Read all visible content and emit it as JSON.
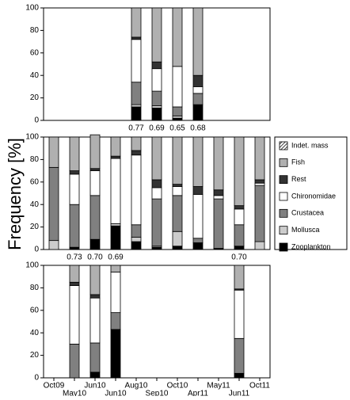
{
  "chart_data": [
    {
      "type": "stacked-bar",
      "ylim": [
        0,
        100
      ],
      "yticks": [
        0,
        20,
        40,
        60,
        80,
        100
      ],
      "notes": [
        null,
        null,
        null,
        null,
        "0.77",
        "0.69",
        "0.65",
        "0.68",
        null,
        null,
        null
      ],
      "series": [
        {
          "values": [
            null,
            null,
            null,
            null,
            0,
            0,
            0,
            0,
            null,
            null,
            null
          ]
        },
        {
          "values": [
            null,
            null,
            null,
            null,
            26,
            48,
            52,
            60,
            null,
            null,
            null
          ]
        },
        {
          "values": [
            null,
            null,
            null,
            null,
            2,
            6,
            0,
            10,
            null,
            null,
            null
          ]
        },
        {
          "values": [
            null,
            null,
            null,
            null,
            38,
            20,
            36,
            6,
            null,
            null,
            null
          ]
        },
        {
          "values": [
            null,
            null,
            null,
            null,
            20,
            13,
            8,
            10,
            null,
            null,
            null
          ]
        },
        {
          "values": [
            null,
            null,
            null,
            null,
            2,
            2,
            2,
            0,
            null,
            null,
            null
          ]
        },
        {
          "values": [
            null,
            null,
            null,
            null,
            12,
            11,
            2,
            14,
            null,
            null,
            null
          ]
        }
      ]
    },
    {
      "type": "stacked-bar",
      "ylim": [
        0,
        100
      ],
      "yticks": [
        0,
        20,
        40,
        60,
        80,
        100
      ],
      "ylabel": "Frequency [%]",
      "notes": [
        null,
        "0.73",
        "0.70",
        "0.69",
        null,
        null,
        null,
        null,
        null,
        "0.70",
        null
      ],
      "series": [
        {
          "name": "Indet. mass",
          "color": "#ffffff",
          "pattern": "hatch",
          "values": [
            0,
            0,
            0,
            0,
            0,
            0,
            0,
            0,
            0,
            0,
            0
          ]
        },
        {
          "name": "Fish",
          "color": "#b0b0b0",
          "values": [
            27,
            30,
            30,
            17,
            12,
            38,
            42,
            44,
            47,
            61,
            38
          ]
        },
        {
          "name": "Rest",
          "color": "#333333",
          "values": [
            0,
            3,
            2,
            2,
            4,
            7,
            2,
            7,
            5,
            3,
            3
          ]
        },
        {
          "name": "Chironomidae",
          "color": "#ffffff",
          "values": [
            0,
            27,
            22,
            58,
            62,
            10,
            8,
            39,
            3,
            14,
            2
          ]
        },
        {
          "name": "Crustacea",
          "color": "#808080",
          "values": [
            65,
            38,
            39,
            0,
            11,
            42,
            32,
            4,
            44,
            19,
            50
          ]
        },
        {
          "name": "Mollusca",
          "color": "#cccccc",
          "values": [
            8,
            0,
            0,
            2,
            4,
            1,
            13,
            0,
            0,
            0,
            7
          ]
        },
        {
          "name": "Zooplankton",
          "color": "#000000",
          "values": [
            0,
            2,
            9,
            21,
            7,
            2,
            3,
            6,
            1,
            3,
            0
          ]
        }
      ]
    },
    {
      "type": "stacked-bar",
      "ylim": [
        0,
        100
      ],
      "yticks": [
        0,
        20,
        40,
        60,
        80,
        100
      ],
      "categories": [
        "Oct09",
        "May10",
        "Jun10",
        "Jun10",
        "Aug10",
        "Sep10",
        "Oct10",
        "Apr11",
        "May11",
        "Jun11",
        "Oct11"
      ],
      "series": [
        {
          "values": [
            null,
            0,
            0,
            0,
            null,
            null,
            null,
            null,
            null,
            0,
            null
          ]
        },
        {
          "values": [
            null,
            15,
            26,
            6,
            null,
            null,
            null,
            null,
            null,
            21,
            null
          ]
        },
        {
          "values": [
            null,
            3,
            3,
            0,
            null,
            null,
            null,
            null,
            null,
            1,
            null
          ]
        },
        {
          "values": [
            null,
            52,
            40,
            36,
            null,
            null,
            null,
            null,
            null,
            43,
            null
          ]
        },
        {
          "values": [
            null,
            30,
            26,
            15,
            null,
            null,
            null,
            null,
            null,
            31,
            null
          ]
        },
        {
          "values": [
            null,
            0,
            0,
            0,
            null,
            null,
            null,
            null,
            null,
            0,
            null
          ]
        },
        {
          "values": [
            null,
            0,
            5,
            43,
            null,
            null,
            null,
            null,
            null,
            4,
            null
          ]
        }
      ]
    }
  ]
}
